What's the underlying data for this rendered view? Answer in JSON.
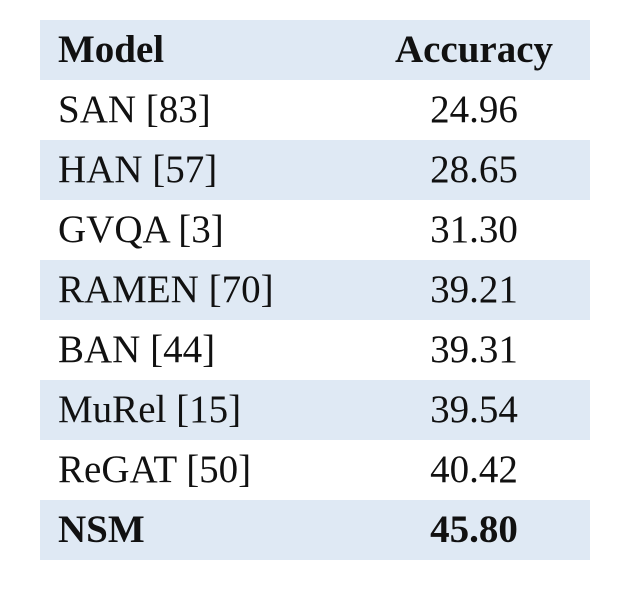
{
  "table": {
    "header": [
      "Model",
      "Accuracy"
    ],
    "rows": [
      [
        "SAN [83]",
        "24.96"
      ],
      [
        "HAN [57]",
        "28.65"
      ],
      [
        "GVQA [3]",
        "31.30"
      ],
      [
        "RAMEN [70]",
        "39.21"
      ],
      [
        "BAN [44]",
        "39.31"
      ],
      [
        "MuRel [15]",
        "39.54"
      ],
      [
        "ReGAT [50]",
        "40.42"
      ],
      [
        "NSM",
        "45.80"
      ]
    ]
  }
}
